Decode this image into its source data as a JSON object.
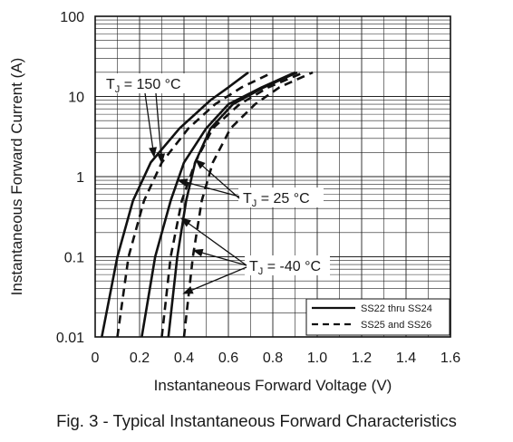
{
  "chart_data": {
    "type": "line",
    "xlabel": "Instantaneous Forward Voltage (V)",
    "ylabel": "Instantaneous Forward Current (A)",
    "xlim": [
      0,
      1.6
    ],
    "ylim": [
      0.01,
      100
    ],
    "yscale": "log",
    "grid": true,
    "x_ticks": [
      "0",
      "0.2",
      "0.4",
      "0.6",
      "0.8",
      "1.0",
      "1.2",
      "1.4",
      "1.6"
    ],
    "y_ticks": [
      "0.01",
      "0.1",
      "1",
      "10",
      "100"
    ],
    "legend": {
      "placement": "bottom-right",
      "entries": [
        {
          "label": "SS22 thru SS24",
          "style": "solid"
        },
        {
          "label": "SS25 and SS26",
          "style": "dashed"
        }
      ]
    },
    "annotations": [
      {
        "text": "T",
        "subscript": "J",
        "rest": " = 150 °C"
      },
      {
        "text": "T",
        "subscript": "J",
        "rest": " = 25 °C"
      },
      {
        "text": "T",
        "subscript": "J",
        "rest": " = -40 °C"
      }
    ],
    "series": [
      {
        "group": "SS22 thru SS24",
        "temperature": "150 °C",
        "style": "solid",
        "points": [
          [
            0.03,
            0.01
          ],
          [
            0.1,
            0.1
          ],
          [
            0.17,
            0.5
          ],
          [
            0.25,
            1.5
          ],
          [
            0.38,
            4
          ],
          [
            0.52,
            9
          ],
          [
            0.6,
            13
          ],
          [
            0.69,
            20
          ]
        ]
      },
      {
        "group": "SS22 thru SS24",
        "temperature": "25 °C",
        "style": "solid",
        "points": [
          [
            0.21,
            0.01
          ],
          [
            0.27,
            0.1
          ],
          [
            0.34,
            0.5
          ],
          [
            0.4,
            1.5
          ],
          [
            0.5,
            4
          ],
          [
            0.6,
            8
          ],
          [
            0.75,
            13
          ],
          [
            0.9,
            20
          ]
        ]
      },
      {
        "group": "SS22 thru SS24",
        "temperature": "-40 °C",
        "style": "solid",
        "points": [
          [
            0.33,
            0.01
          ],
          [
            0.37,
            0.1
          ],
          [
            0.41,
            0.5
          ],
          [
            0.45,
            1.5
          ],
          [
            0.52,
            4
          ],
          [
            0.62,
            8
          ],
          [
            0.76,
            13
          ],
          [
            0.91,
            20
          ]
        ]
      },
      {
        "group": "SS25 and SS26",
        "temperature": "150 °C",
        "style": "dashed",
        "points": [
          [
            0.1,
            0.01
          ],
          [
            0.15,
            0.1
          ],
          [
            0.22,
            0.5
          ],
          [
            0.3,
            1.5
          ],
          [
            0.42,
            4
          ],
          [
            0.54,
            8
          ],
          [
            0.66,
            13
          ],
          [
            0.8,
            20
          ]
        ]
      },
      {
        "group": "SS25 and SS26",
        "temperature": "25 °C",
        "style": "dashed",
        "points": [
          [
            0.3,
            0.01
          ],
          [
            0.34,
            0.1
          ],
          [
            0.39,
            0.5
          ],
          [
            0.45,
            1.5
          ],
          [
            0.53,
            4
          ],
          [
            0.65,
            8
          ],
          [
            0.78,
            13
          ],
          [
            0.94,
            20
          ]
        ]
      },
      {
        "group": "SS25 and SS26",
        "temperature": "-40 °C",
        "style": "dashed",
        "points": [
          [
            0.4,
            0.01
          ],
          [
            0.44,
            0.1
          ],
          [
            0.48,
            0.5
          ],
          [
            0.53,
            1.5
          ],
          [
            0.61,
            4
          ],
          [
            0.72,
            8
          ],
          [
            0.83,
            13
          ],
          [
            0.98,
            20
          ]
        ]
      }
    ]
  },
  "caption": "Fig. 3 - Typical Instantaneous Forward Characteristics"
}
